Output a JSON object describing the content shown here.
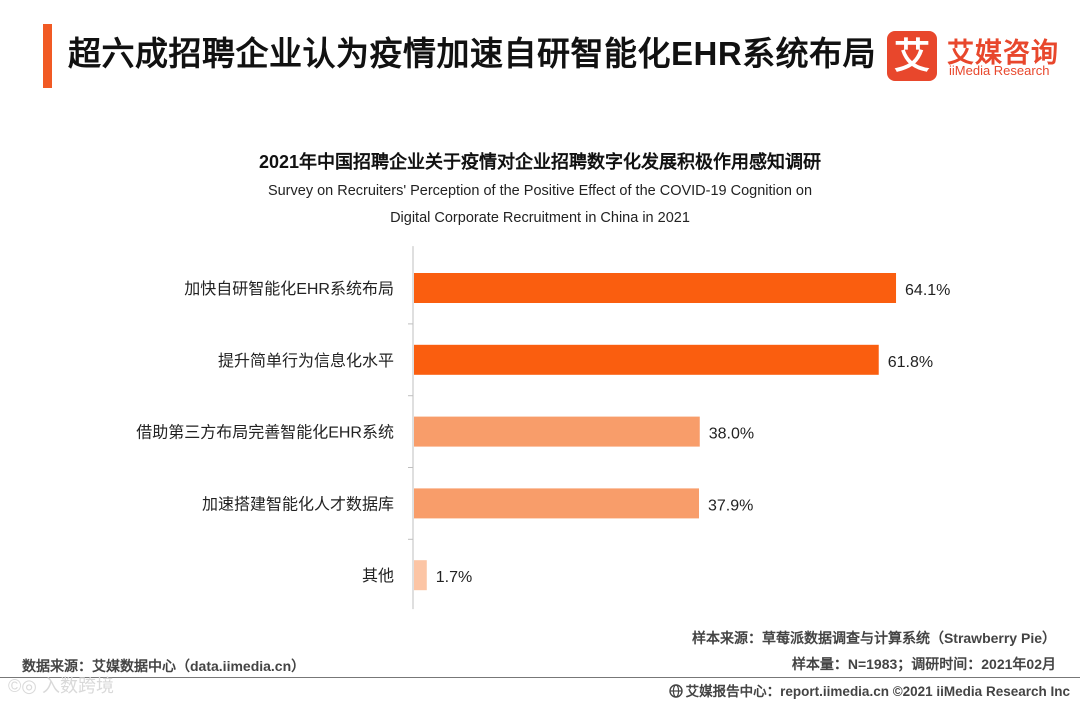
{
  "header": {
    "title": "超六成招聘企业认为疫情加速自研智能化EHR系统布局",
    "accent_color": "#f15a24",
    "logo": {
      "mark": "艾",
      "name_cn": "艾媒咨询",
      "name_en": "iiMedia Research",
      "color": "#e8472c"
    }
  },
  "chart_data": {
    "type": "bar",
    "orientation": "horizontal",
    "title": "2021年中国招聘企业关于疫情对企业招聘数字化发展积极作用感知调研",
    "subtitle_lines": [
      "Survey on Recruiters' Perception of the Positive Effect of the COVID-19 Cognition on",
      "Digital Corporate Recruitment in China in 2021"
    ],
    "categories": [
      "加快自研智能化EHR系统布局",
      "提升简单行为信息化水平",
      "借助第三方布局完善智能化EHR系统",
      "加速搭建智能化人才数据库",
      "其他"
    ],
    "values": [
      64.1,
      61.8,
      38.0,
      37.9,
      1.7
    ],
    "value_labels": [
      "64.1%",
      "61.8%",
      "38.0%",
      "37.9%",
      "1.7%"
    ],
    "bar_colors": [
      "#fa5e0f",
      "#fa5e0f",
      "#f89d6a",
      "#f89d6a",
      "#fcc5a5"
    ],
    "xlim": [
      0,
      70
    ],
    "grid": false,
    "legend": "none"
  },
  "footer": {
    "data_source": "数据来源：艾媒数据中心（data.iimedia.cn）",
    "sample_source": "样本来源：草莓派数据调查与计算系统（Strawberry Pie）",
    "sample_info": "样本量：N=1983；调研时间：2021年02月",
    "report_center": "艾媒报告中心：report.iimedia.cn  ©2021  iiMedia Research  Inc",
    "watermark": "©◎ 入数跨境"
  }
}
